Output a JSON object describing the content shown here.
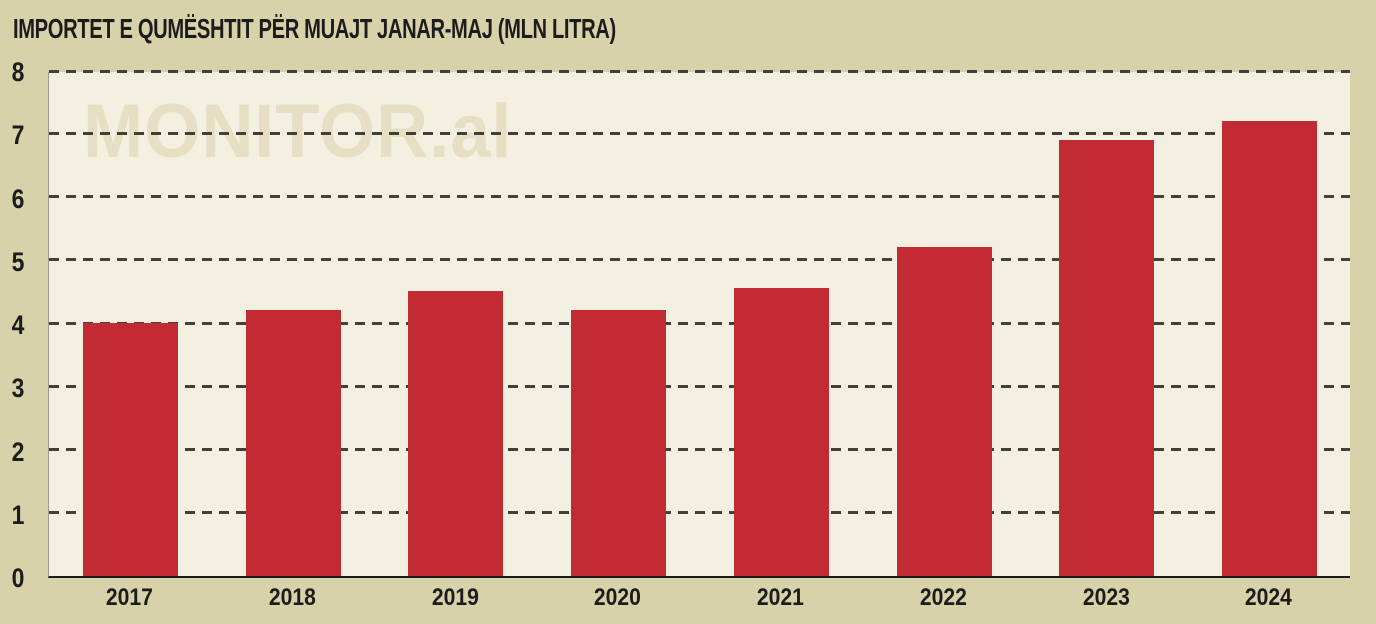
{
  "title": "IMPORTET E QUMËSHTIT PËR MUAJT JANAR-MAJ (MLN LITRA)",
  "watermark": "MONITOR.al",
  "colors": {
    "page_background": "#d8d2ab",
    "plot_background": "#f4f0e1",
    "bar": "#c22b33",
    "gridline": "#403f3a",
    "text": "#1c1c1a",
    "watermark": "#e6dfc4"
  },
  "chart_data": {
    "type": "bar",
    "title": "IMPORTET E QUMËSHTIT PËR MUAJT JANAR-MAJ (MLN LITRA)",
    "categories": [
      "2017",
      "2018",
      "2019",
      "2020",
      "2021",
      "2022",
      "2023",
      "2024"
    ],
    "values": [
      4.0,
      4.2,
      4.5,
      4.2,
      4.55,
      5.2,
      6.9,
      7.2
    ],
    "xlabel": "",
    "ylabel": "",
    "ylim": [
      0,
      8
    ],
    "yticks": [
      0,
      1,
      2,
      3,
      4,
      5,
      6,
      7,
      8
    ],
    "grid": "horizontal-dashed",
    "legend": "none",
    "unit": "mln litra"
  }
}
